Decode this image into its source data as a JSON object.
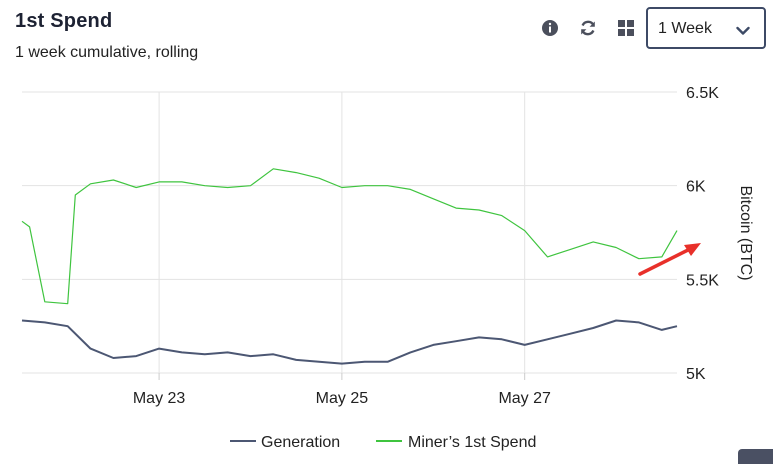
{
  "header": {
    "title": "1st Spend",
    "subtitle": "1 week cumulative, rolling"
  },
  "toolbar": {
    "info_icon": "info-icon",
    "refresh_icon": "refresh-icon",
    "grid_icon": "grid-icon",
    "period_select": {
      "value": "1 Week",
      "icon": "chevron-down-icon"
    }
  },
  "chart_data": {
    "type": "line",
    "title": "",
    "xlabel": "",
    "ylabel": "Bitcoin (BTC)",
    "x_ticks": [
      "May 23",
      "May 25",
      "May 27"
    ],
    "y_ticks": [
      "5K",
      "5.5K",
      "6K",
      "6.5K"
    ],
    "ylim": [
      5000,
      6500
    ],
    "xlim": [
      "May 21 12:00",
      "May 28 16:00"
    ],
    "grid": true,
    "legend_position": "bottom",
    "colors": {
      "generation": "#4c5773",
      "miners_first_spend": "#3fc43f",
      "annotation_arrow": "#e8302a"
    },
    "series": [
      {
        "name": "Generation",
        "x": [
          "May 21 12:00",
          "May 21 18:00",
          "May 22 00:00",
          "May 22 06:00",
          "May 22 12:00",
          "May 22 18:00",
          "May 23 00:00",
          "May 23 06:00",
          "May 23 12:00",
          "May 23 18:00",
          "May 24 00:00",
          "May 24 06:00",
          "May 24 12:00",
          "May 24 18:00",
          "May 25 00:00",
          "May 25 06:00",
          "May 25 12:00",
          "May 25 18:00",
          "May 26 00:00",
          "May 26 06:00",
          "May 26 12:00",
          "May 26 18:00",
          "May 27 00:00",
          "May 27 06:00",
          "May 27 12:00",
          "May 27 18:00",
          "May 28 00:00",
          "May 28 06:00",
          "May 28 12:00",
          "May 28 16:00"
        ],
        "values": [
          5280,
          5270,
          5250,
          5130,
          5080,
          5090,
          5130,
          5110,
          5100,
          5110,
          5090,
          5100,
          5070,
          5060,
          5050,
          5060,
          5060,
          5110,
          5150,
          5170,
          5190,
          5180,
          5150,
          5180,
          5210,
          5240,
          5280,
          5270,
          5230,
          5250
        ]
      },
      {
        "name": "Miner’s 1st Spend",
        "x": [
          "May 21 12:00",
          "May 21 14:00",
          "May 21 18:00",
          "May 22 00:00",
          "May 22 02:00",
          "May 22 06:00",
          "May 22 12:00",
          "May 22 18:00",
          "May 23 00:00",
          "May 23 06:00",
          "May 23 12:00",
          "May 23 18:00",
          "May 24 00:00",
          "May 24 06:00",
          "May 24 12:00",
          "May 24 18:00",
          "May 25 00:00",
          "May 25 06:00",
          "May 25 12:00",
          "May 25 18:00",
          "May 26 00:00",
          "May 26 06:00",
          "May 26 12:00",
          "May 26 18:00",
          "May 27 00:00",
          "May 27 06:00",
          "May 27 12:00",
          "May 27 18:00",
          "May 28 00:00",
          "May 28 06:00",
          "May 28 12:00",
          "May 28 16:00"
        ],
        "values": [
          5810,
          5780,
          5380,
          5370,
          5950,
          6010,
          6030,
          5990,
          6020,
          6020,
          6000,
          5990,
          6000,
          6090,
          6070,
          6040,
          5990,
          6000,
          6000,
          5980,
          5930,
          5880,
          5870,
          5840,
          5760,
          5620,
          5660,
          5700,
          5670,
          5610,
          5620,
          5760
        ]
      }
    ]
  }
}
